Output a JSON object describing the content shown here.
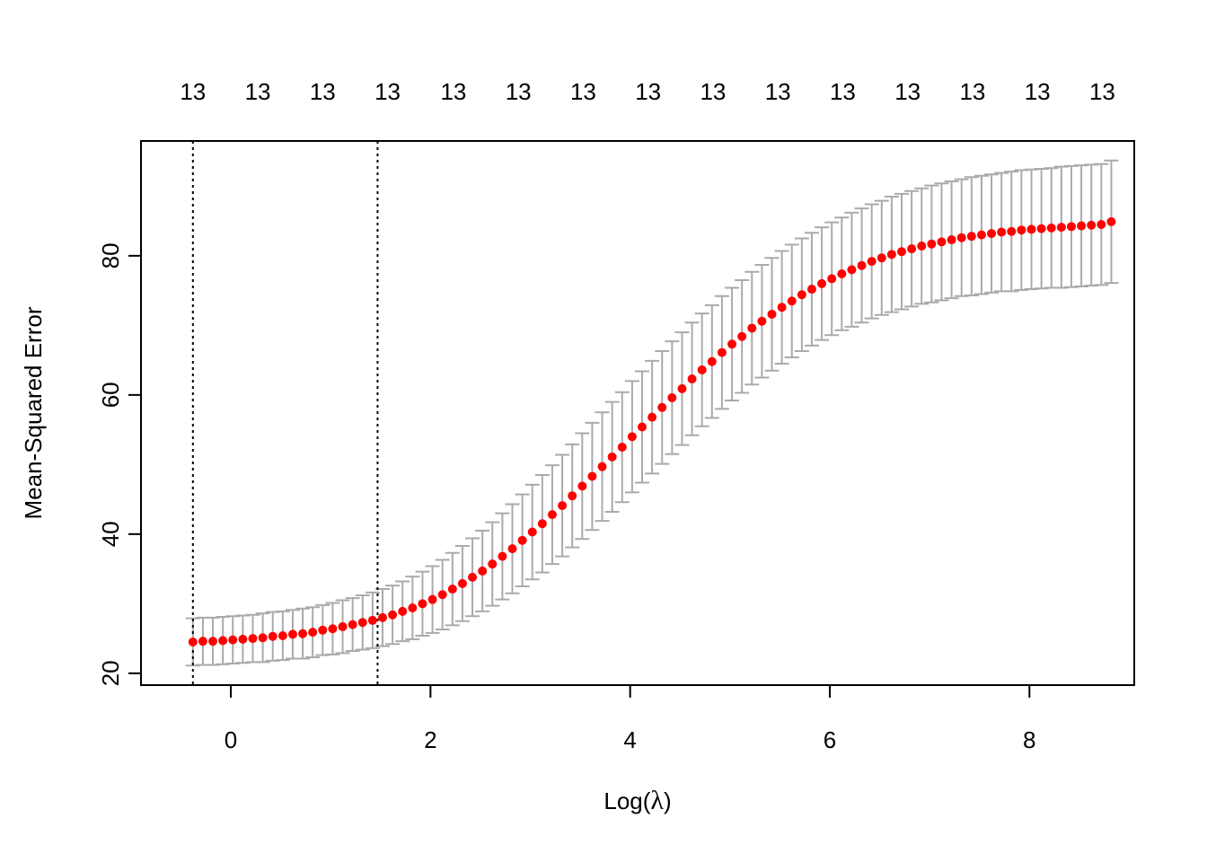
{
  "chart_data": {
    "type": "scatter",
    "title": "",
    "xlabel_prefix": "Log(",
    "xlabel_symbol": "λ",
    "xlabel_suffix": ")",
    "ylabel": "Mean-Squared Error",
    "xlim": [
      -0.9,
      9.05
    ],
    "ylim": [
      18.3,
      96.5
    ],
    "x_ticks": [
      0,
      2,
      4,
      6,
      8
    ],
    "x_tick_labels": [
      "0",
      "2",
      "4",
      "6",
      "8"
    ],
    "y_ticks": [
      20,
      40,
      60,
      80
    ],
    "y_tick_labels": [
      "20",
      "40",
      "60",
      "80"
    ],
    "grid": false,
    "legend": "none",
    "point_color": "#ff0000",
    "errorbar_color": "#aaaaaa",
    "vlines": [
      -0.38,
      1.47
    ],
    "top_axis": {
      "positions": [
        -0.38,
        0.27,
        0.92,
        1.57,
        2.23,
        2.88,
        3.53,
        4.18,
        4.83,
        5.48,
        6.13,
        6.78,
        7.43,
        8.08,
        8.73
      ],
      "labels": [
        "13",
        "13",
        "13",
        "13",
        "13",
        "13",
        "13",
        "13",
        "13",
        "13",
        "13",
        "13",
        "13",
        "13",
        "13"
      ]
    },
    "x": [
      -0.38,
      -0.28,
      -0.18,
      -0.08,
      0.02,
      0.12,
      0.22,
      0.32,
      0.42,
      0.52,
      0.62,
      0.72,
      0.82,
      0.92,
      1.02,
      1.12,
      1.22,
      1.32,
      1.42,
      1.52,
      1.62,
      1.72,
      1.82,
      1.92,
      2.02,
      2.12,
      2.22,
      2.32,
      2.42,
      2.52,
      2.62,
      2.72,
      2.82,
      2.92,
      3.02,
      3.12,
      3.22,
      3.32,
      3.42,
      3.52,
      3.62,
      3.72,
      3.82,
      3.92,
      4.02,
      4.12,
      4.22,
      4.32,
      4.42,
      4.52,
      4.62,
      4.72,
      4.82,
      4.92,
      5.02,
      5.12,
      5.22,
      5.32,
      5.42,
      5.52,
      5.62,
      5.72,
      5.82,
      5.92,
      6.02,
      6.12,
      6.22,
      6.32,
      6.42,
      6.52,
      6.62,
      6.72,
      6.82,
      6.92,
      7.02,
      7.12,
      7.22,
      7.32,
      7.42,
      7.52,
      7.62,
      7.72,
      7.82,
      7.92,
      8.02,
      8.12,
      8.22,
      8.32,
      8.42,
      8.52,
      8.62,
      8.72,
      8.82
    ],
    "y": [
      24.5,
      24.6,
      24.6,
      24.7,
      24.8,
      24.9,
      25.0,
      25.1,
      25.3,
      25.4,
      25.6,
      25.7,
      25.9,
      26.2,
      26.4,
      26.7,
      27.0,
      27.3,
      27.6,
      28.0,
      28.4,
      28.9,
      29.4,
      30.0,
      30.6,
      31.3,
      32.1,
      32.9,
      33.8,
      34.7,
      35.7,
      36.8,
      37.9,
      39.1,
      40.3,
      41.5,
      42.8,
      44.1,
      45.5,
      46.9,
      48.3,
      49.7,
      51.1,
      52.5,
      54.0,
      55.4,
      56.8,
      58.2,
      59.6,
      60.9,
      62.3,
      63.6,
      64.8,
      66.1,
      67.3,
      68.4,
      69.6,
      70.6,
      71.6,
      72.6,
      73.5,
      74.4,
      75.2,
      76.0,
      76.7,
      77.4,
      78.0,
      78.6,
      79.2,
      79.7,
      80.2,
      80.6,
      81.0,
      81.4,
      81.7,
      82.0,
      82.3,
      82.6,
      82.8,
      83.0,
      83.2,
      83.4,
      83.5,
      83.7,
      83.8,
      83.9,
      84.0,
      84.1,
      84.2,
      84.3,
      84.4,
      84.5,
      84.9
    ],
    "err": [
      3.4,
      3.4,
      3.4,
      3.4,
      3.4,
      3.4,
      3.4,
      3.5,
      3.5,
      3.5,
      3.5,
      3.6,
      3.6,
      3.6,
      3.7,
      3.8,
      3.8,
      3.9,
      4.0,
      4.1,
      4.2,
      4.3,
      4.5,
      4.6,
      4.8,
      5.0,
      5.2,
      5.4,
      5.6,
      5.8,
      6.0,
      6.2,
      6.4,
      6.6,
      6.8,
      7.0,
      7.1,
      7.3,
      7.4,
      7.6,
      7.7,
      7.8,
      7.9,
      7.9,
      8.0,
      8.0,
      8.1,
      8.1,
      8.1,
      8.1,
      8.1,
      8.1,
      8.1,
      8.1,
      8.1,
      8.1,
      8.1,
      8.1,
      8.1,
      8.1,
      8.1,
      8.1,
      8.1,
      8.1,
      8.1,
      8.1,
      8.2,
      8.2,
      8.2,
      8.2,
      8.3,
      8.3,
      8.3,
      8.3,
      8.4,
      8.4,
      8.4,
      8.4,
      8.5,
      8.5,
      8.5,
      8.5,
      8.6,
      8.6,
      8.6,
      8.6,
      8.6,
      8.7,
      8.7,
      8.7,
      8.7,
      8.7,
      8.8
    ]
  }
}
